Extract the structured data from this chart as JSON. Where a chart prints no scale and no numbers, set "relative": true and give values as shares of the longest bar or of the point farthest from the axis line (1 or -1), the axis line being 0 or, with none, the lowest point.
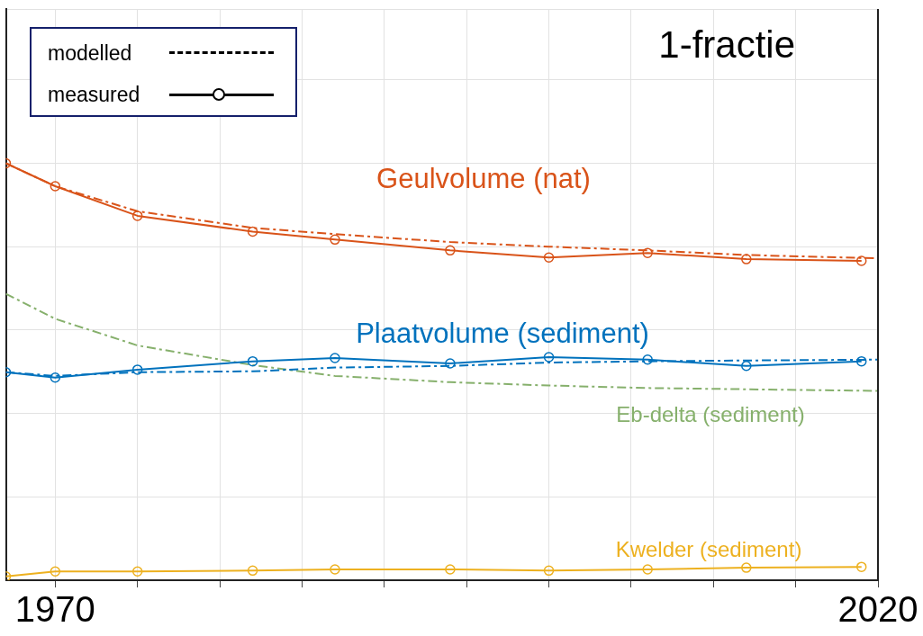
{
  "chart_data": {
    "type": "line",
    "title": "1-fractie",
    "relative": true,
    "x": [
      1967,
      1970,
      1975,
      1982,
      1987,
      1994,
      2000,
      2006,
      2012,
      2019
    ],
    "xlim": [
      1967,
      2020
    ],
    "xticks": [
      {
        "value": 1970,
        "label": "1970"
      },
      {
        "value": 1975,
        "label": null
      },
      {
        "value": 1980,
        "label": null
      },
      {
        "value": 1985,
        "label": null
      },
      {
        "value": 1990,
        "label": null
      },
      {
        "value": 1995,
        "label": null
      },
      {
        "value": 2000,
        "label": null
      },
      {
        "value": 2005,
        "label": null
      },
      {
        "value": 2010,
        "label": null
      },
      {
        "value": 2015,
        "label": null
      },
      {
        "value": 2020,
        "label": "2020"
      }
    ],
    "grid": true,
    "annotations": [
      "modelled",
      "measured"
    ],
    "series": [
      {
        "name": "Geulvolume (nat)",
        "color": "#d95319",
        "marker": "circle",
        "line_style": "solid",
        "values": [
          1.0,
          0.945,
          0.874,
          0.836,
          0.817,
          0.791,
          0.774,
          0.785,
          0.77,
          0.766
        ]
      },
      {
        "color": "#d95319",
        "marker": "none",
        "line_style": "dashed",
        "x": [
          1967,
          1970,
          1975,
          1982,
          1987,
          1994,
          2000,
          2006,
          2012,
          2020
        ],
        "values": [
          1.0,
          0.945,
          0.885,
          0.845,
          0.83,
          0.811,
          0.8,
          0.791,
          0.78,
          0.772
        ]
      },
      {
        "name": "Plaatvolume (sediment)",
        "color": "#0072bd",
        "marker": "circle",
        "line_style": "solid",
        "values": [
          0.499,
          0.486,
          0.505,
          0.525,
          0.533,
          0.52,
          0.535,
          0.529,
          0.514,
          0.525
        ]
      },
      {
        "color": "#0072bd",
        "marker": "none",
        "line_style": "dashed",
        "x": [
          1967,
          1970,
          1975,
          1982,
          1987,
          1994,
          2000,
          2006,
          2012,
          2020
        ],
        "values": [
          0.499,
          0.49,
          0.499,
          0.501,
          0.51,
          0.514,
          0.522,
          0.525,
          0.527,
          0.529
        ]
      },
      {
        "name": "Eb-delta (sediment)",
        "color": "#86b06c",
        "marker": "none",
        "line_style": "dashed",
        "x": [
          1967,
          1970,
          1975,
          1982,
          1987,
          1994,
          2000,
          2006,
          2012,
          2020
        ],
        "values": [
          0.687,
          0.627,
          0.563,
          0.516,
          0.49,
          0.475,
          0.467,
          0.461,
          0.458,
          0.454
        ]
      },
      {
        "name": "Kwelder (sediment)",
        "color": "#edb120",
        "marker": "circle",
        "line_style": "solid",
        "values": [
          0.009,
          0.021,
          0.021,
          0.023,
          0.026,
          0.026,
          0.023,
          0.026,
          0.03,
          0.032
        ]
      }
    ]
  }
}
